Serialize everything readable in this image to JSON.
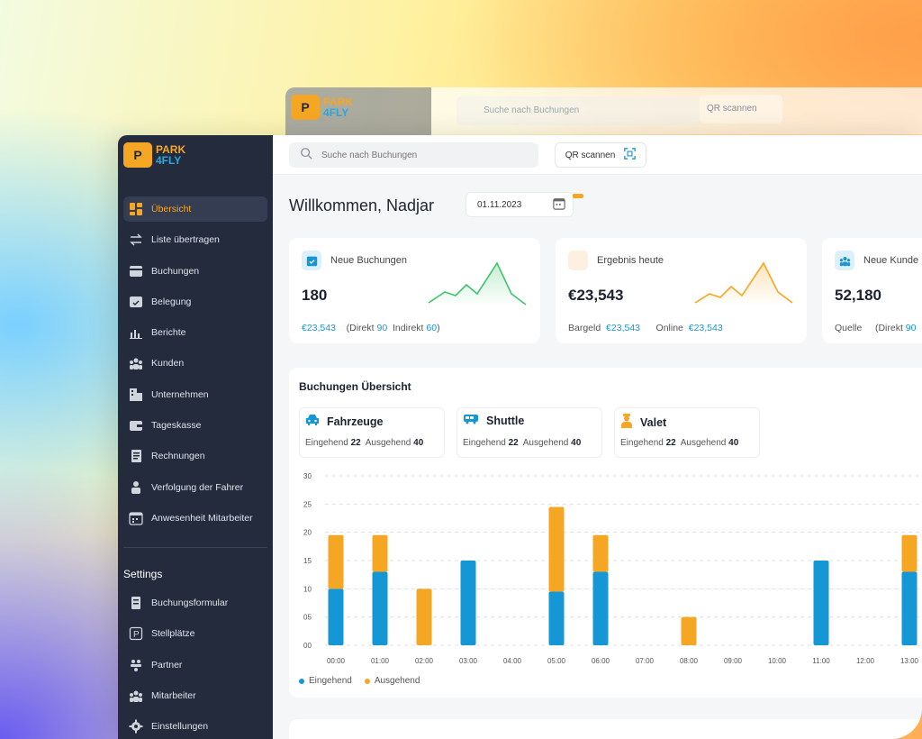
{
  "brand": {
    "logo_mark": "P",
    "line1": "PARK",
    "line2": "4FLY"
  },
  "ghost": {
    "search_placeholder": "Suche nach Buchungen",
    "qr_label": "QR scannen"
  },
  "topbar": {
    "search_placeholder": "Suche nach Buchungen",
    "qr_label": "QR scannen"
  },
  "sidebar": {
    "items": [
      {
        "label": "Übersicht",
        "icon": "dashboard-icon"
      },
      {
        "label": "Liste übertragen",
        "icon": "transfer-icon"
      },
      {
        "label": "Buchungen",
        "icon": "bookings-icon"
      },
      {
        "label": "Belegung",
        "icon": "occupancy-icon"
      },
      {
        "label": "Berichte",
        "icon": "reports-icon"
      },
      {
        "label": "Kunden",
        "icon": "customers-icon"
      },
      {
        "label": "Unternehmen",
        "icon": "company-icon"
      },
      {
        "label": "Tageskasse",
        "icon": "cashbox-icon"
      },
      {
        "label": "Rechnungen",
        "icon": "invoice-icon"
      },
      {
        "label": "Verfolgung der Fahrer",
        "icon": "driver-icon"
      },
      {
        "label": "Anwesenheit Mitarbeiter",
        "icon": "calendar-icon"
      }
    ],
    "settings_title": "Settings",
    "settings_items": [
      {
        "label": "Buchungsformular",
        "icon": "form-icon"
      },
      {
        "label": "Stellplätze",
        "icon": "parking-icon"
      },
      {
        "label": "Partner",
        "icon": "partner-icon"
      },
      {
        "label": "Mitarbeiter",
        "icon": "staff-icon"
      },
      {
        "label": "Einstellungen",
        "icon": "gear-icon"
      }
    ]
  },
  "main": {
    "welcome": "Willkommen, Nadjar",
    "date": "01.11.2023",
    "cards": [
      {
        "title": "Neue Buchungen",
        "value": "180",
        "f1": "€23,543",
        "f2": "(Direkt",
        "f3": "90",
        "f4": "Indirekt",
        "f5": "60",
        "f6": ")"
      },
      {
        "title": "Ergebnis heute",
        "value": "€23,543",
        "f1": "Bargeld",
        "f2": "€23,543",
        "f3": "Online",
        "f4": "€23,543"
      },
      {
        "title": "Neue Kunde",
        "value": "52,180",
        "f1": "Quelle",
        "f2": "(Direkt",
        "f3": "90"
      }
    ],
    "overview": {
      "title": "Buchungen Übersicht",
      "stats": [
        {
          "title": "Fahrzeuge",
          "in_label": "Eingehend",
          "in": "22",
          "out_label": "Ausgehend",
          "out": "40"
        },
        {
          "title": "Shuttle",
          "in_label": "Eingehend",
          "in": "22",
          "out_label": "Ausgehend",
          "out": "40"
        },
        {
          "title": "Valet",
          "in_label": "Eingehend",
          "in": "22",
          "out_label": "Ausgehend",
          "out": "40"
        }
      ],
      "legend": {
        "in": "Eingehend",
        "out": "Ausgehend"
      }
    }
  },
  "colors": {
    "accent": "#f5a623",
    "blue": "#1497d4",
    "green": "#3ec46d",
    "sidebar": "#232b3d"
  },
  "chart_data": {
    "type": "bar",
    "stacked": true,
    "categories": [
      "00:00",
      "01:00",
      "02:00",
      "03:00",
      "04:00",
      "05:00",
      "06:00",
      "07:00",
      "08:00",
      "09:00",
      "10:00",
      "11:00",
      "12:00",
      "13:00"
    ],
    "y_ticks": [
      "00",
      "05",
      "10",
      "15",
      "20",
      "25",
      "30"
    ],
    "ylim": [
      0,
      30
    ],
    "series": [
      {
        "name": "Eingehend",
        "color": "#1497d4",
        "values": [
          10,
          13,
          0,
          15,
          0,
          9.5,
          13,
          0,
          0,
          0,
          0,
          15,
          0,
          13
        ]
      },
      {
        "name": "Ausgehend",
        "color": "#f5a623",
        "values": [
          9.5,
          6.5,
          10,
          0,
          0,
          15,
          6.5,
          0,
          5,
          0,
          0,
          0,
          0,
          6.5
        ]
      }
    ],
    "grid": true
  }
}
